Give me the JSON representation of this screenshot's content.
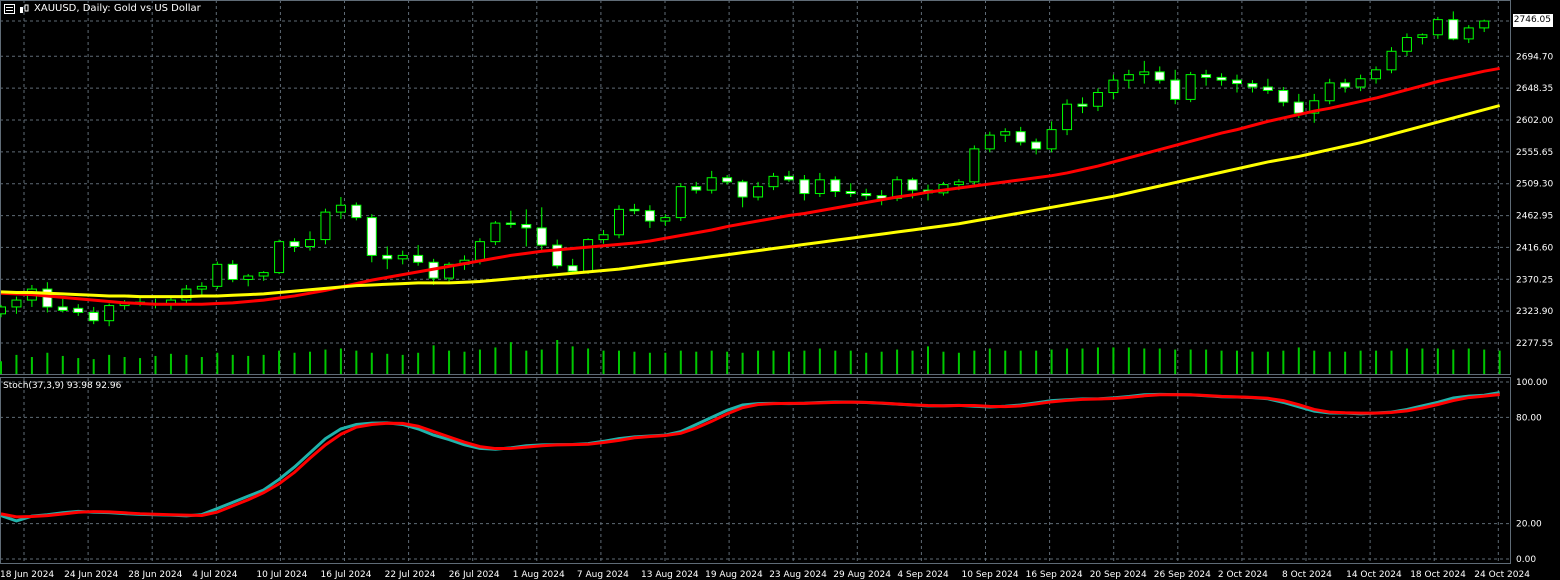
{
  "header": {
    "symbol": "XAUUSD",
    "timeframe": "Daily",
    "description": "Gold vs US Dollar",
    "title": "XAUUSD, Daily:  Gold vs US Dollar"
  },
  "subwindow": {
    "title": "Stoch(37,3,9) 93.98 92.96"
  },
  "last_price_label": "2746.05",
  "colors": {
    "background": "#000000",
    "grid": "#5f6b76",
    "bull_body": "#000000",
    "bear_body": "#ffffff",
    "candle_outline": "#00ff00",
    "volume": "#00c800",
    "ma_fast": "#ff0000",
    "ma_slow": "#ffff00",
    "stoch_main": "#20b2aa",
    "stoch_signal": "#ff0000",
    "axis_text": "#ffffff"
  },
  "chart_data": [
    {
      "type": "candlestick",
      "title": "XAUUSD, Daily:  Gold vs US Dollar",
      "price_axis_ticks": [
        "2746.05",
        "2694.70",
        "2648.35",
        "2602.00",
        "2555.65",
        "2509.30",
        "2462.95",
        "2416.60",
        "2370.25",
        "2323.90",
        "2277.55"
      ],
      "ylim": [
        2268,
        2760
      ],
      "time_axis_ticks": [
        "18 Jun 2024",
        "24 Jun 2024",
        "28 Jun 2024",
        "4 Jul 2024",
        "10 Jul 2024",
        "16 Jul 2024",
        "22 Jul 2024",
        "26 Jul 2024",
        "1 Aug 2024",
        "7 Aug 2024",
        "13 Aug 2024",
        "19 Aug 2024",
        "23 Aug 2024",
        "29 Aug 2024",
        "4 Sep 2024",
        "10 Sep 2024",
        "16 Sep 2024",
        "20 Sep 2024",
        "26 Sep 2024",
        "2 Oct 2024",
        "8 Oct 2024",
        "14 Oct 2024",
        "18 Oct 2024",
        "24 Oct 2024"
      ],
      "grid": true,
      "candles": [
        [
          2320,
          2333,
          2315,
          2330
        ],
        [
          2330,
          2345,
          2320,
          2340
        ],
        [
          2340,
          2362,
          2330,
          2356
        ],
        [
          2356,
          2366,
          2322,
          2330
        ],
        [
          2330,
          2342,
          2322,
          2325
        ],
        [
          2328,
          2334,
          2317,
          2322
        ],
        [
          2322,
          2330,
          2305,
          2310
        ],
        [
          2310,
          2335,
          2302,
          2332
        ],
        [
          2332,
          2340,
          2326,
          2337
        ],
        [
          2337,
          2345,
          2331,
          2335
        ],
        [
          2335,
          2342,
          2328,
          2333
        ],
        [
          2333,
          2345,
          2326,
          2340
        ],
        [
          2340,
          2362,
          2335,
          2356
        ],
        [
          2356,
          2366,
          2348,
          2360
        ],
        [
          2360,
          2396,
          2356,
          2392
        ],
        [
          2392,
          2398,
          2366,
          2370
        ],
        [
          2370,
          2378,
          2360,
          2375
        ],
        [
          2375,
          2382,
          2368,
          2380
        ],
        [
          2380,
          2428,
          2378,
          2425
        ],
        [
          2425,
          2430,
          2410,
          2418
        ],
        [
          2418,
          2440,
          2412,
          2428
        ],
        [
          2428,
          2473,
          2421,
          2468
        ],
        [
          2468,
          2490,
          2458,
          2478
        ],
        [
          2478,
          2482,
          2456,
          2460
        ],
        [
          2460,
          2465,
          2395,
          2405
        ],
        [
          2405,
          2418,
          2385,
          2400
        ],
        [
          2400,
          2412,
          2392,
          2405
        ],
        [
          2405,
          2420,
          2390,
          2395
        ],
        [
          2395,
          2400,
          2362,
          2372
        ],
        [
          2372,
          2395,
          2366,
          2392
        ],
        [
          2392,
          2405,
          2384,
          2398
        ],
        [
          2398,
          2430,
          2392,
          2425
        ],
        [
          2425,
          2455,
          2420,
          2452
        ],
        [
          2452,
          2470,
          2445,
          2450
        ],
        [
          2450,
          2472,
          2418,
          2445
        ],
        [
          2445,
          2475,
          2410,
          2420
        ],
        [
          2420,
          2428,
          2386,
          2390
        ],
        [
          2390,
          2400,
          2378,
          2382
        ],
        [
          2382,
          2430,
          2378,
          2428
        ],
        [
          2428,
          2442,
          2422,
          2435
        ],
        [
          2435,
          2478,
          2430,
          2472
        ],
        [
          2472,
          2480,
          2465,
          2470
        ],
        [
          2470,
          2478,
          2445,
          2455
        ],
        [
          2455,
          2465,
          2448,
          2460
        ],
        [
          2460,
          2510,
          2455,
          2505
        ],
        [
          2505,
          2512,
          2495,
          2500
        ],
        [
          2500,
          2528,
          2495,
          2518
        ],
        [
          2518,
          2522,
          2508,
          2512
        ],
        [
          2512,
          2515,
          2475,
          2490
        ],
        [
          2490,
          2512,
          2485,
          2505
        ],
        [
          2505,
          2525,
          2500,
          2520
        ],
        [
          2520,
          2528,
          2512,
          2515
        ],
        [
          2515,
          2522,
          2485,
          2495
        ],
        [
          2495,
          2525,
          2490,
          2515
        ],
        [
          2515,
          2520,
          2490,
          2498
        ],
        [
          2498,
          2510,
          2490,
          2495
        ],
        [
          2495,
          2502,
          2486,
          2492
        ],
        [
          2492,
          2500,
          2478,
          2488
        ],
        [
          2488,
          2520,
          2484,
          2515
        ],
        [
          2515,
          2518,
          2488,
          2500
        ],
        [
          2500,
          2508,
          2485,
          2496
        ],
        [
          2496,
          2512,
          2492,
          2508
        ],
        [
          2508,
          2516,
          2500,
          2512
        ],
        [
          2512,
          2565,
          2508,
          2560
        ],
        [
          2560,
          2585,
          2555,
          2580
        ],
        [
          2580,
          2590,
          2570,
          2585
        ],
        [
          2585,
          2592,
          2565,
          2570
        ],
        [
          2570,
          2575,
          2552,
          2560
        ],
        [
          2560,
          2600,
          2555,
          2588
        ],
        [
          2588,
          2632,
          2580,
          2625
        ],
        [
          2625,
          2635,
          2612,
          2622
        ],
        [
          2622,
          2648,
          2615,
          2642
        ],
        [
          2642,
          2668,
          2632,
          2660
        ],
        [
          2660,
          2675,
          2648,
          2668
        ],
        [
          2668,
          2688,
          2655,
          2672
        ],
        [
          2672,
          2680,
          2655,
          2660
        ],
        [
          2660,
          2675,
          2625,
          2632
        ],
        [
          2632,
          2672,
          2628,
          2668
        ],
        [
          2668,
          2675,
          2652,
          2664
        ],
        [
          2664,
          2670,
          2652,
          2660
        ],
        [
          2660,
          2668,
          2642,
          2655
        ],
        [
          2655,
          2660,
          2642,
          2650
        ],
        [
          2650,
          2662,
          2640,
          2645
        ],
        [
          2645,
          2650,
          2622,
          2628
        ],
        [
          2628,
          2640,
          2605,
          2612
        ],
        [
          2612,
          2640,
          2598,
          2630
        ],
        [
          2630,
          2662,
          2625,
          2656
        ],
        [
          2656,
          2662,
          2642,
          2650
        ],
        [
          2650,
          2668,
          2644,
          2662
        ],
        [
          2662,
          2680,
          2655,
          2675
        ],
        [
          2675,
          2708,
          2670,
          2702
        ],
        [
          2702,
          2728,
          2695,
          2722
        ],
        [
          2722,
          2728,
          2712,
          2726
        ],
        [
          2726,
          2752,
          2720,
          2748
        ],
        [
          2748,
          2760,
          2718,
          2720
        ],
        [
          2720,
          2740,
          2714,
          2736
        ],
        [
          2736,
          2748,
          2730,
          2746
        ]
      ],
      "moving_averages": [
        {
          "color": "#ff0000",
          "values": [
            2350,
            2349,
            2348,
            2346,
            2344,
            2342,
            2340,
            2338,
            2336,
            2335,
            2334,
            2334,
            2334,
            2334,
            2335,
            2336,
            2338,
            2340,
            2343,
            2346,
            2350,
            2354,
            2359,
            2364,
            2369,
            2373,
            2377,
            2381,
            2385,
            2389,
            2393,
            2397,
            2401,
            2405,
            2408,
            2411,
            2413,
            2415,
            2417,
            2419,
            2421,
            2423,
            2426,
            2430,
            2434,
            2438,
            2442,
            2447,
            2451,
            2455,
            2459,
            2463,
            2466,
            2470,
            2474,
            2478,
            2482,
            2486,
            2490,
            2493,
            2497,
            2500,
            2503,
            2506,
            2509,
            2512,
            2515,
            2518,
            2521,
            2525,
            2530,
            2535,
            2541,
            2547,
            2553,
            2559,
            2565,
            2571,
            2577,
            2583,
            2588,
            2594,
            2600,
            2605,
            2610,
            2615,
            2619,
            2624,
            2629,
            2634,
            2640,
            2646,
            2652,
            2658,
            2663,
            2668,
            2673,
            2677
          ]
        },
        {
          "color": "#ffff00",
          "values": [
            2352,
            2351,
            2351,
            2350,
            2349,
            2348,
            2347,
            2346,
            2346,
            2345,
            2345,
            2345,
            2345,
            2346,
            2346,
            2347,
            2348,
            2349,
            2351,
            2353,
            2355,
            2357,
            2359,
            2361,
            2362,
            2363,
            2364,
            2365,
            2365,
            2365,
            2366,
            2367,
            2369,
            2371,
            2373,
            2375,
            2377,
            2379,
            2381,
            2383,
            2385,
            2388,
            2391,
            2394,
            2397,
            2400,
            2403,
            2406,
            2409,
            2412,
            2415,
            2418,
            2421,
            2424,
            2427,
            2430,
            2433,
            2436,
            2439,
            2442,
            2445,
            2448,
            2451,
            2455,
            2459,
            2463,
            2467,
            2471,
            2475,
            2479,
            2483,
            2487,
            2491,
            2496,
            2501,
            2506,
            2511,
            2516,
            2521,
            2526,
            2531,
            2536,
            2541,
            2545,
            2549,
            2554,
            2559,
            2564,
            2569,
            2575,
            2581,
            2587,
            2593,
            2599,
            2605,
            2611,
            2617,
            2623
          ]
        }
      ],
      "volume": [
        12,
        18,
        16,
        20,
        17,
        15,
        14,
        18,
        16,
        15,
        17,
        19,
        18,
        16,
        20,
        18,
        17,
        18,
        22,
        20,
        21,
        23,
        24,
        22,
        20,
        19,
        18,
        20,
        27,
        22,
        21,
        23,
        25,
        30,
        22,
        23,
        32,
        26,
        24,
        22,
        22,
        21,
        20,
        20,
        22,
        21,
        22,
        21,
        20,
        22,
        22,
        21,
        22,
        24,
        22,
        22,
        20,
        21,
        23,
        22,
        26,
        21,
        20,
        22,
        24,
        22,
        22,
        22,
        23,
        24,
        24,
        25,
        25,
        25,
        24,
        24,
        23,
        23,
        23,
        22,
        22,
        21,
        21,
        22,
        25,
        22,
        21,
        21,
        22,
        22,
        22,
        24,
        24,
        24,
        23,
        24,
        23,
        22
      ]
    },
    {
      "type": "line",
      "title": "Stoch(37,3,9) 93.98 92.96",
      "y_ticks": [
        "100.00",
        "80.00",
        "20.00",
        "0.00"
      ],
      "ylim": [
        0,
        100
      ],
      "series": [
        {
          "color": "#20b2aa",
          "values": [
            24.5,
            21.5,
            24.2,
            25.0,
            26.1,
            26.9,
            26.4,
            26.2,
            25.6,
            25.2,
            25.0,
            24.8,
            24.4,
            25.1,
            28.5,
            32.0,
            35.5,
            39.0,
            45.0,
            52.0,
            60.0,
            68.0,
            73.5,
            76.0,
            76.8,
            76.9,
            76.0,
            73.5,
            70.0,
            67.5,
            64.5,
            62.5,
            62.0,
            62.8,
            64.0,
            64.5,
            64.6,
            64.7,
            65.2,
            66.5,
            68.0,
            69.0,
            69.5,
            70.0,
            72.0,
            76.0,
            80.0,
            84.0,
            87.0,
            87.8,
            87.9,
            87.8,
            88.0,
            88.4,
            88.7,
            88.6,
            88.4,
            88.0,
            87.5,
            87.0,
            86.5,
            86.6,
            86.8,
            86.3,
            85.9,
            86.3,
            87.0,
            88.2,
            89.5,
            90.0,
            90.5,
            90.5,
            91.0,
            91.8,
            92.8,
            93.0,
            92.9,
            92.7,
            92.2,
            91.7,
            91.5,
            91.2,
            90.5,
            88.5,
            86.0,
            83.5,
            82.5,
            82.5,
            82.0,
            82.5,
            83.0,
            84.5,
            86.5,
            88.5,
            91.0,
            92.0,
            92.5,
            93.98
          ]
        },
        {
          "color": "#ff0000",
          "values": [
            25.5,
            23.8,
            24.0,
            24.5,
            25.4,
            26.4,
            26.8,
            26.6,
            26.1,
            25.6,
            25.3,
            25.0,
            24.8,
            24.6,
            26.5,
            30.0,
            33.5,
            37.5,
            42.5,
            49.0,
            57.0,
            64.5,
            70.5,
            74.5,
            76.0,
            76.7,
            76.6,
            75.0,
            72.0,
            69.0,
            66.0,
            63.5,
            62.4,
            62.4,
            63.2,
            64.0,
            64.5,
            64.6,
            64.8,
            65.8,
            67.0,
            68.5,
            69.2,
            69.8,
            71.0,
            74.0,
            77.8,
            82.0,
            85.5,
            87.3,
            87.8,
            87.9,
            87.9,
            88.2,
            88.5,
            88.6,
            88.5,
            88.1,
            87.6,
            87.1,
            86.7,
            86.5,
            86.7,
            86.7,
            86.2,
            86.1,
            86.5,
            87.6,
            88.8,
            89.6,
            90.2,
            90.4,
            90.7,
            91.3,
            92.2,
            92.8,
            92.9,
            92.8,
            92.4,
            91.9,
            91.6,
            91.3,
            90.8,
            89.5,
            87.2,
            84.5,
            83.0,
            82.6,
            82.4,
            82.4,
            82.8,
            83.7,
            85.3,
            87.3,
            89.5,
            91.2,
            92.0,
            92.96
          ]
        }
      ]
    }
  ]
}
